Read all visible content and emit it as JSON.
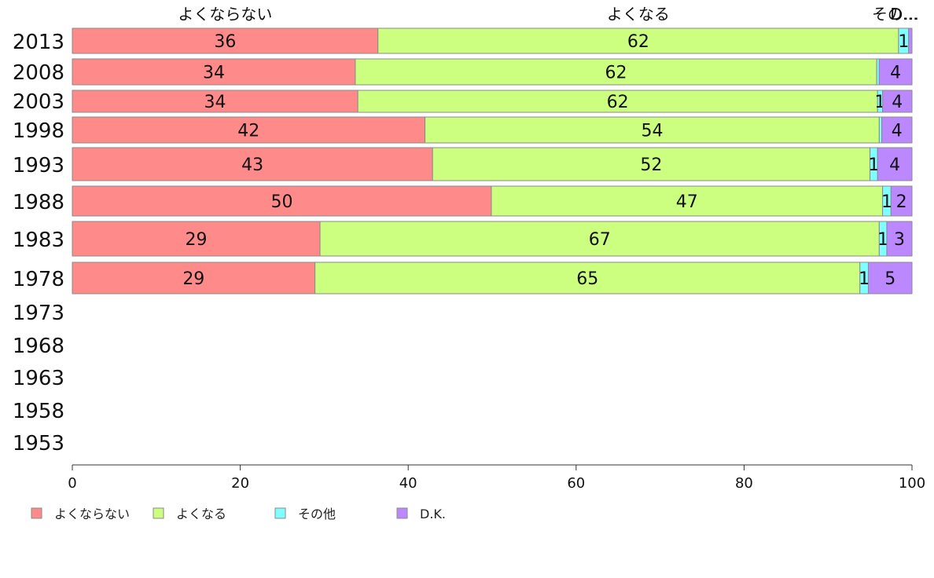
{
  "chart_data": {
    "type": "bar",
    "orientation": "horizontal",
    "stacked": true,
    "xlim": [
      0,
      100
    ],
    "x_ticks": [
      "0",
      "20",
      "40",
      "60",
      "80",
      "100"
    ],
    "grid": false,
    "legend_position": "bottom-left",
    "categories": [
      "2013",
      "2008",
      "2003",
      "1998",
      "1993",
      "1988",
      "1983",
      "1978",
      "1973",
      "1968",
      "1963",
      "1958",
      "1953"
    ],
    "top_labels": [
      "よくならない",
      "よくなる",
      "その…",
      "D…"
    ],
    "series": [
      {
        "name": "よくならない",
        "color": "#ff8a8a",
        "values": [
          36.4,
          33.7,
          34.0,
          42.0,
          42.9,
          49.9,
          29.5,
          28.9,
          null,
          null,
          null,
          null,
          null
        ],
        "labels": [
          "36",
          "34",
          "34",
          "42",
          "43",
          "50",
          "29",
          "29",
          "",
          "",
          "",
          "",
          ""
        ]
      },
      {
        "name": "よくなる",
        "color": "#ccff80",
        "values": [
          62.0,
          62.1,
          61.9,
          54.1,
          52.1,
          46.6,
          66.6,
          64.9,
          null,
          null,
          null,
          null,
          null
        ],
        "labels": [
          "62",
          "62",
          "62",
          "54",
          "52",
          "47",
          "67",
          "65",
          "",
          "",
          "",
          "",
          ""
        ]
      },
      {
        "name": "その他",
        "color": "#7fffff",
        "values": [
          1.2,
          0.3,
          0.6,
          0.3,
          0.9,
          1.0,
          0.9,
          1.0,
          null,
          null,
          null,
          null,
          null
        ],
        "labels": [
          "1",
          "",
          "1",
          "",
          "1",
          "1",
          "1",
          "1",
          "",
          "",
          "",
          "",
          ""
        ]
      },
      {
        "name": "D.K.",
        "color": "#bb88ff",
        "values": [
          0.4,
          3.9,
          3.5,
          3.6,
          4.1,
          2.5,
          3.0,
          5.2,
          null,
          null,
          null,
          null,
          null
        ],
        "labels": [
          "",
          "4",
          "4",
          "4",
          "4",
          "2",
          "3",
          "5",
          "",
          "",
          "",
          "",
          ""
        ]
      }
    ]
  }
}
